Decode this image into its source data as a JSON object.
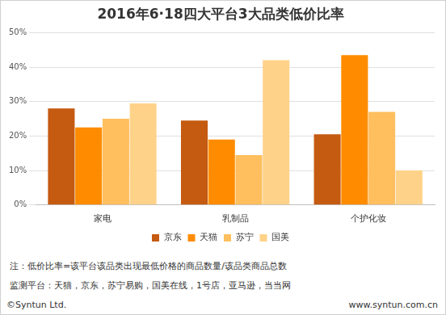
{
  "chart_data": {
    "type": "bar",
    "title": "2016年6·18四大平台3大品类低价比率",
    "categories": [
      "家电",
      "乳制品",
      "个护化妆"
    ],
    "series": [
      {
        "name": "京东",
        "color": "#c55a11",
        "values": [
          28,
          24.5,
          20.5
        ]
      },
      {
        "name": "天猫",
        "color": "#ff8c00",
        "values": [
          22.5,
          19,
          43.5
        ]
      },
      {
        "name": "苏宁",
        "color": "#ffbf5f",
        "values": [
          25,
          14.5,
          27
        ]
      },
      {
        "name": "国美",
        "color": "#ffd28a",
        "values": [
          29.5,
          42,
          10
        ]
      }
    ],
    "ylim": [
      0,
      50
    ],
    "yticks": [
      {
        "value": 0,
        "label": "0%"
      },
      {
        "value": 10,
        "label": "10%"
      },
      {
        "value": 20,
        "label": "20%"
      },
      {
        "value": 30,
        "label": "30%"
      },
      {
        "value": 40,
        "label": "40%"
      },
      {
        "value": 50,
        "label": "50%"
      }
    ],
    "grid": true,
    "legend": "bottom",
    "annotations": [
      "注：低价比率=该平台该品类出现最低价格的商品数量/该品类商品总数",
      "监测平台：天猫，京东，苏宁易购，国美在线，1号店，亚马逊，当当网",
      "©Syntun Ltd.",
      "www.syntun.com.cn"
    ]
  }
}
